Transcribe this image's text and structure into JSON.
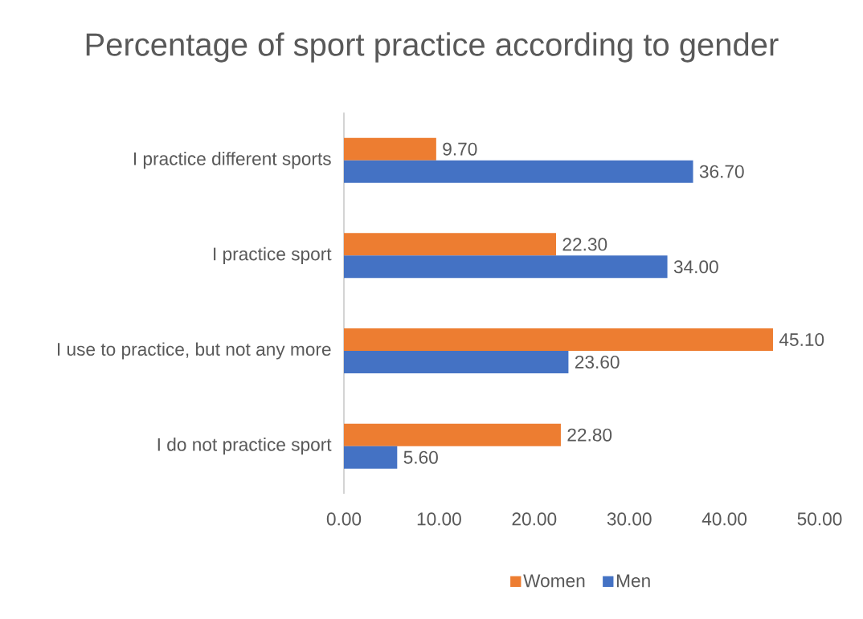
{
  "chart_data": {
    "type": "bar",
    "orientation": "horizontal",
    "title": "Percentage of sport practice according to gender",
    "categories": [
      "I practice different sports",
      "I practice sport",
      "I use to practice, but not any more",
      "I do not practice sport"
    ],
    "series": [
      {
        "name": "Women",
        "color": "#ed7d31",
        "values": [
          9.7,
          22.3,
          45.1,
          22.8
        ],
        "value_labels": [
          "9.70",
          "22.30",
          "45.10",
          "22.80"
        ]
      },
      {
        "name": "Men",
        "color": "#4472c4",
        "values": [
          36.7,
          34.0,
          23.6,
          5.6
        ],
        "value_labels": [
          "36.70",
          "34.00",
          "23.60",
          "5.60"
        ]
      }
    ],
    "xlim": [
      0,
      50
    ],
    "xticks": [
      {
        "value": 0,
        "label": "0.00"
      },
      {
        "value": 10,
        "label": "10.00"
      },
      {
        "value": 20,
        "label": "20.00"
      },
      {
        "value": 30,
        "label": "30.00"
      },
      {
        "value": 40,
        "label": "40.00"
      },
      {
        "value": 50,
        "label": "50.00"
      }
    ],
    "grid": false,
    "legend": "bottom"
  }
}
